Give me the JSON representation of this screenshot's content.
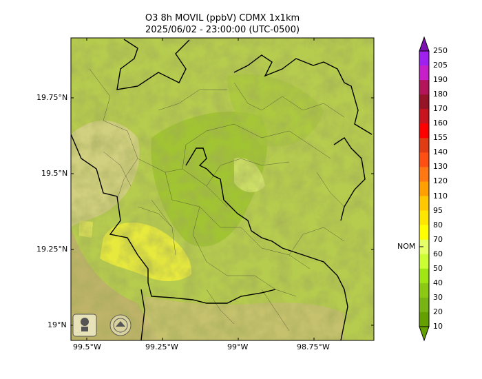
{
  "title_line1": "O3 8h MOVIL (ppbV) CDMX 1x1km",
  "title_line2": "2025/06/02 - 23:00:00 (UTC-0500)",
  "lat_ticks": [
    "19.75°N",
    "19.5°N",
    "19.25°N",
    "19°N"
  ],
  "lon_ticks": [
    "99.5°W",
    "99.25°W",
    "99°W",
    "98.75°W"
  ],
  "colorbar": {
    "labels": [
      "250",
      "205",
      "190",
      "180",
      "170",
      "160",
      "155",
      "140",
      "130",
      "120",
      "110",
      "95",
      "80",
      "70",
      "60",
      "50",
      "40",
      "30",
      "20",
      "10"
    ],
    "colors": [
      "#7b0fb0",
      "#a020f0",
      "#c81ec8",
      "#b4145a",
      "#961428",
      "#c8141e",
      "#ff0000",
      "#e03c14",
      "#ff5014",
      "#ff7814",
      "#ffa000",
      "#ffc800",
      "#ffe600",
      "#ffff00",
      "#e6ff66",
      "#ccff33",
      "#a0e614",
      "#8cc814",
      "#78b414",
      "#64a000"
    ],
    "nom_label": "NOM"
  },
  "logos": [
    "SEDEMA",
    "Gobierno de México"
  ]
}
